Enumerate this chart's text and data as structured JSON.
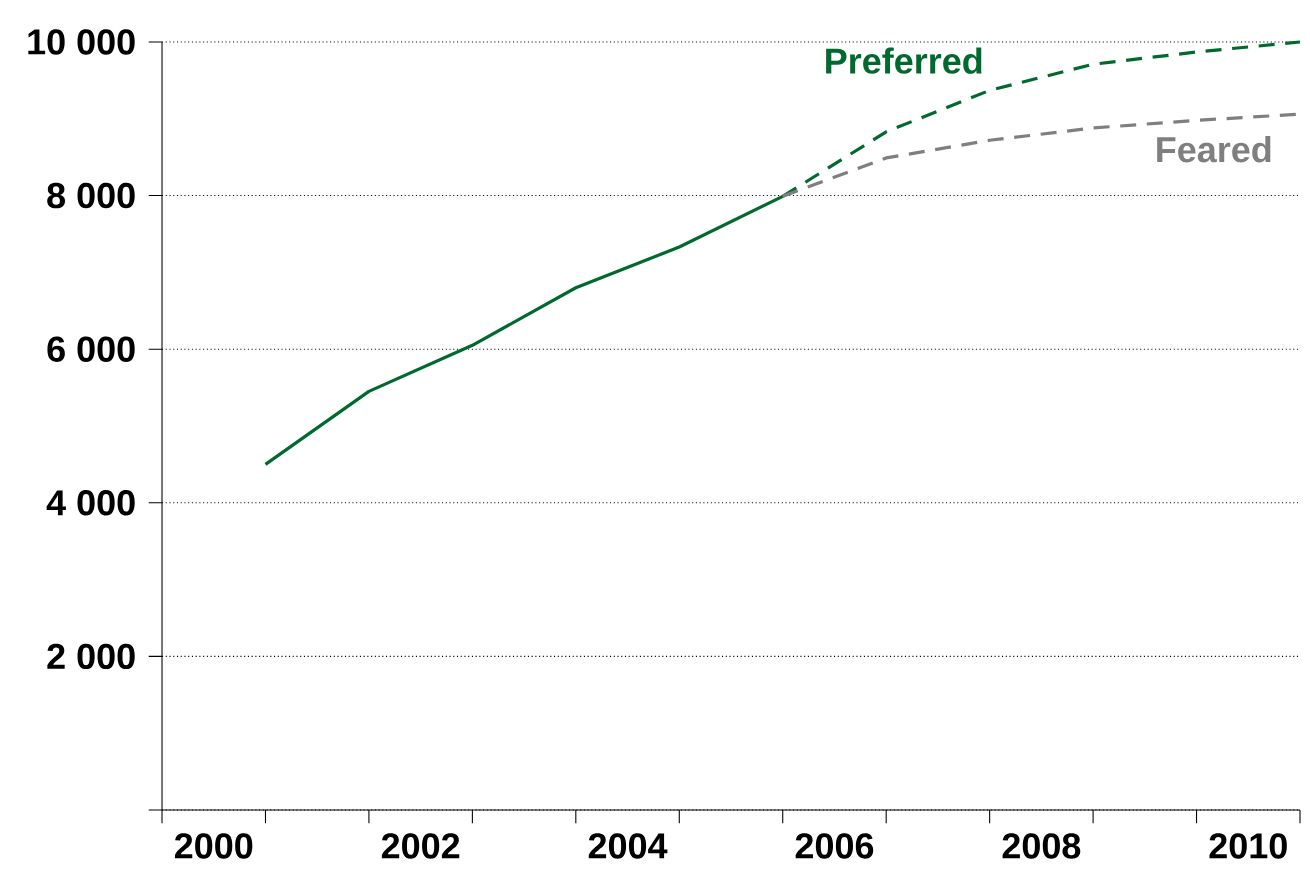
{
  "chart_data": {
    "type": "line",
    "xlim": [
      2000,
      2011
    ],
    "xticks": [
      {
        "value": 2000,
        "label": null
      },
      {
        "value": 2001,
        "label": null
      },
      {
        "value": 2002,
        "label": null
      },
      {
        "value": 2003,
        "label": null
      },
      {
        "value": 2004,
        "label": null
      },
      {
        "value": 2005,
        "label": null
      },
      {
        "value": 2006,
        "label": null
      },
      {
        "value": 2007,
        "label": null
      },
      {
        "value": 2008,
        "label": null
      },
      {
        "value": 2009,
        "label": null
      },
      {
        "value": 2010,
        "label": null
      },
      {
        "value": 2011,
        "label": null
      },
      {
        "value": 2000.5,
        "label": "2000"
      },
      {
        "value": 2002.5,
        "label": "2002"
      },
      {
        "value": 2004.5,
        "label": "2004"
      },
      {
        "value": 2006.5,
        "label": "2006"
      },
      {
        "value": 2008.5,
        "label": "2008"
      },
      {
        "value": 2010.5,
        "label": "2010"
      }
    ],
    "ylim": [
      0,
      10000
    ],
    "yticks": [
      {
        "value": 0,
        "label": null
      },
      {
        "value": 2000,
        "label": "2 000"
      },
      {
        "value": 4000,
        "label": "4 000"
      },
      {
        "value": 6000,
        "label": "6 000"
      },
      {
        "value": 8000,
        "label": "8 000"
      },
      {
        "value": 10000,
        "label": "10 000"
      }
    ],
    "grid": "y",
    "series": [
      {
        "color": "#006a2e",
        "line_style": "solid",
        "x": [
          2001,
          2002,
          2003,
          2004,
          2005,
          2006
        ],
        "values": [
          4500,
          5450,
          6050,
          6800,
          7330,
          7990
        ]
      },
      {
        "name": "Preferred",
        "color": "#006a2e",
        "line_style": "dashed",
        "x": [
          2006,
          2007,
          2008,
          2009,
          2010,
          2011
        ],
        "values": [
          7990,
          8830,
          9370,
          9710,
          9870,
          10000
        ]
      },
      {
        "name": "Feared",
        "color": "#7f7f80",
        "line_style": "dashed",
        "x": [
          2006,
          2007,
          2008,
          2009,
          2010,
          2011
        ],
        "values": [
          7990,
          8490,
          8720,
          8880,
          8980,
          9060
        ]
      }
    ]
  }
}
